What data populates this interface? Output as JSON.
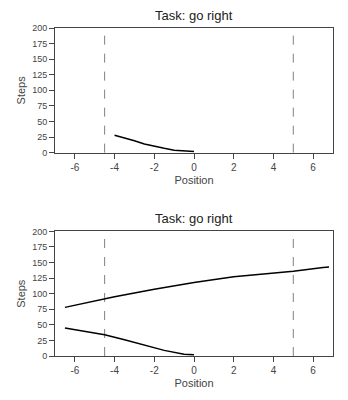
{
  "chart_data": [
    {
      "type": "line",
      "title": "Task: go right",
      "xlabel": "Position",
      "ylabel": "Steps",
      "xlim": [
        -7,
        7
      ],
      "ylim": [
        0,
        200
      ],
      "xticks": [
        -6,
        -4,
        -2,
        0,
        2,
        4,
        6
      ],
      "yticks": [
        0,
        25,
        50,
        75,
        100,
        125,
        150,
        175,
        200
      ],
      "grid": false,
      "series": [
        {
          "color": "black",
          "x": [
            -4.0,
            -3.5,
            -3.0,
            -2.5,
            -2.0,
            -1.5,
            -1.0,
            -0.5,
            0.0
          ],
          "values": [
            28,
            24,
            19,
            14,
            10,
            7,
            4,
            2.5,
            2
          ]
        }
      ],
      "vlines": [
        {
          "x": -4.5,
          "color": "gray",
          "line_style": "dashed"
        },
        {
          "x": 5.0,
          "color": "gray",
          "line_style": "dashed"
        }
      ]
    },
    {
      "type": "line",
      "title": "Task: go right",
      "xlabel": "Position",
      "ylabel": "Steps",
      "xlim": [
        -7,
        7
      ],
      "ylim": [
        0,
        200
      ],
      "xticks": [
        -6,
        -4,
        -2,
        0,
        2,
        4,
        6
      ],
      "yticks": [
        0,
        25,
        50,
        75,
        100,
        125,
        150,
        175,
        200
      ],
      "grid": false,
      "series": [
        {
          "color": "black",
          "x": [
            -6.5,
            -5.5,
            -4.5,
            -3.5,
            -2.5,
            -1.5,
            -0.5,
            0.0
          ],
          "values": [
            45,
            40,
            34,
            26,
            17,
            9,
            3,
            2
          ]
        },
        {
          "color": "black",
          "x": [
            -6.5,
            -5.0,
            -4.0,
            -2.0,
            0.0,
            2.0,
            4.0,
            5.0,
            6.5,
            6.8
          ],
          "values": [
            78,
            88,
            95,
            107,
            118,
            127,
            133,
            136,
            142,
            143
          ]
        }
      ],
      "vlines": [
        {
          "x": -4.5,
          "color": "gray",
          "line_style": "dashed"
        },
        {
          "x": 5.0,
          "color": "gray",
          "line_style": "dashed"
        }
      ]
    }
  ]
}
